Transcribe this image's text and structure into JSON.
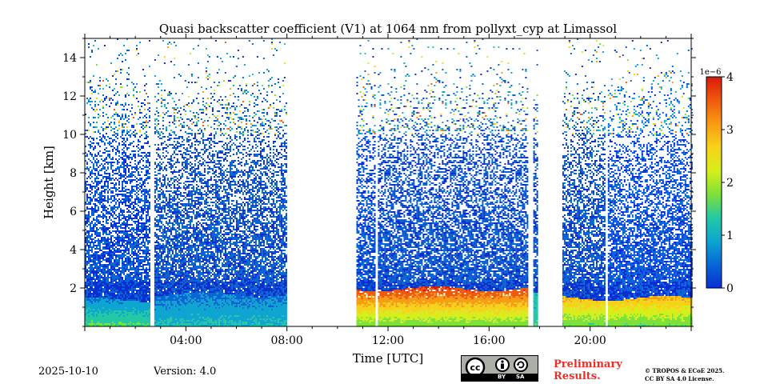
{
  "chart_data": {
    "type": "heatmap",
    "title": "Quasi backscatter coefficient (V1) at 1064 nm from pollyxt_cyp at Limassol",
    "xlabel": "Time [UTC]",
    "ylabel": "Height [km]",
    "xlim_hours": [
      0,
      24
    ],
    "ylim_km": [
      0,
      15
    ],
    "x_ticks": [
      {
        "hour": 4,
        "label": "04:00"
      },
      {
        "hour": 8,
        "label": "08:00"
      },
      {
        "hour": 12,
        "label": "12:00"
      },
      {
        "hour": 16,
        "label": "16:00"
      },
      {
        "hour": 20,
        "label": "20:00"
      }
    ],
    "y_ticks": [
      {
        "value": 2,
        "label": "2"
      },
      {
        "value": 4,
        "label": "4"
      },
      {
        "value": 6,
        "label": "6"
      },
      {
        "value": 8,
        "label": "8"
      },
      {
        "value": 10,
        "label": "10"
      },
      {
        "value": 12,
        "label": "12"
      },
      {
        "value": 14,
        "label": "14"
      }
    ],
    "colorbar": {
      "range": [
        0,
        4
      ],
      "exponent_label": "1e−6",
      "ticks": [
        {
          "value": 0,
          "label": "0"
        },
        {
          "value": 1,
          "label": "1"
        },
        {
          "value": 2,
          "label": "2"
        },
        {
          "value": 3,
          "label": "3"
        },
        {
          "value": 4,
          "label": "4"
        }
      ],
      "colormap": [
        "#0a2fd0",
        "#0766d6",
        "#0ea5d0",
        "#23c9a4",
        "#7ee03b",
        "#d6ef1a",
        "#f7d21a",
        "#f79c13",
        "#ef5a0d",
        "#d91a08"
      ]
    },
    "data_segments_hours": [
      [
        0,
        2.55
      ],
      [
        2.75,
        8.0
      ],
      [
        10.75,
        11.45
      ],
      [
        11.6,
        17.55
      ],
      [
        17.75,
        17.9
      ],
      [
        18.9,
        20.55
      ],
      [
        20.7,
        24
      ]
    ],
    "aerosol_layers": [
      {
        "start": 0,
        "end": 2.55,
        "top_km": 1.45,
        "value_low": 1.6,
        "value_high": 0.8
      },
      {
        "start": 2.75,
        "end": 8.0,
        "top_km": 1.7,
        "value_low": 1.2,
        "value_high": 0.7
      },
      {
        "start": 10.75,
        "end": 17.55,
        "top_km": 2.0,
        "value_low": 1.8,
        "value_high": 3.6
      },
      {
        "start": 17.75,
        "end": 17.9,
        "top_km": 1.7,
        "value_low": 1.5,
        "value_high": 1.2
      },
      {
        "start": 18.9,
        "end": 24,
        "top_km": 1.5,
        "value_low": 1.7,
        "value_high": 2.8
      }
    ]
  },
  "footer": {
    "date": "2025-10-10",
    "version": "Version: 4.0",
    "preliminary": "Preliminary\nResults.",
    "copyright": "© TROPOS & ECoE 2025.\nCC BY SA 4.0 License.",
    "license_badge": {
      "by": "BY",
      "sa": "SA"
    }
  }
}
